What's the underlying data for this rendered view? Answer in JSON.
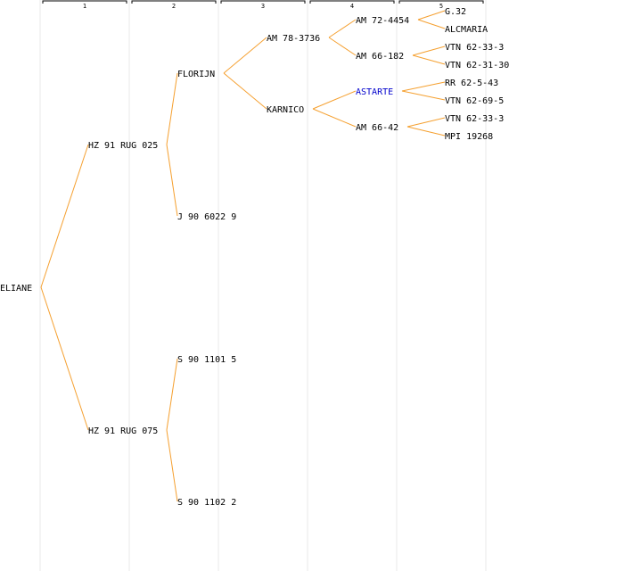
{
  "colors": {
    "edge": "#f5a030",
    "text": "#000000",
    "highlight": "#0000cc",
    "column_line": "#e8e8e8",
    "bracket": "#000000"
  },
  "generations": [
    "1",
    "2",
    "3",
    "4",
    "5"
  ],
  "nodes": [
    {
      "id": "n0",
      "gen": 0,
      "row": 15,
      "label": "ELIANE"
    },
    {
      "id": "n1",
      "gen": 1,
      "row": 7,
      "label": "HZ 91 RUG 025",
      "parent": "n0"
    },
    {
      "id": "n2",
      "gen": 1,
      "row": 23,
      "label": "HZ 91 RUG 075",
      "parent": "n0"
    },
    {
      "id": "n3",
      "gen": 2,
      "row": 3,
      "label": "FLORIJN",
      "parent": "n1"
    },
    {
      "id": "n4",
      "gen": 2,
      "row": 11,
      "label": "J 90 6022 9",
      "parent": "n1"
    },
    {
      "id": "n5",
      "gen": 2,
      "row": 19,
      "label": "S 90 1101 5",
      "parent": "n2"
    },
    {
      "id": "n6",
      "gen": 2,
      "row": 27,
      "label": "S 90 1102 2",
      "parent": "n2"
    },
    {
      "id": "n7",
      "gen": 3,
      "row": 1,
      "label": "AM 78-3736",
      "parent": "n3"
    },
    {
      "id": "n8",
      "gen": 3,
      "row": 5,
      "label": "KARNICO",
      "parent": "n3"
    },
    {
      "id": "n9",
      "gen": 4,
      "row": 0,
      "label": "AM 72-4454",
      "parent": "n7"
    },
    {
      "id": "n10",
      "gen": 4,
      "row": 2,
      "label": "AM 66-182",
      "parent": "n7"
    },
    {
      "id": "n11",
      "gen": 4,
      "row": 4,
      "label": "ASTARTE",
      "parent": "n8",
      "highlight": true
    },
    {
      "id": "n12",
      "gen": 4,
      "row": 6,
      "label": "AM 66-42",
      "parent": "n8"
    },
    {
      "id": "n13",
      "gen": 5,
      "row": -0.5,
      "label": "G.32",
      "parent": "n9"
    },
    {
      "id": "n14",
      "gen": 5,
      "row": 0.5,
      "label": "ALCMARIA",
      "parent": "n9"
    },
    {
      "id": "n15",
      "gen": 5,
      "row": 1.5,
      "label": "VTN 62-33-3",
      "parent": "n10"
    },
    {
      "id": "n16",
      "gen": 5,
      "row": 2.5,
      "label": "VTN 62-31-30",
      "parent": "n10"
    },
    {
      "id": "n17",
      "gen": 5,
      "row": 3.5,
      "label": "RR 62-5-43",
      "parent": "n11"
    },
    {
      "id": "n18",
      "gen": 5,
      "row": 4.5,
      "label": "VTN 62-69-5",
      "parent": "n11"
    },
    {
      "id": "n19",
      "gen": 5,
      "row": 5.5,
      "label": "VTN 62-33-3",
      "parent": "n12"
    },
    {
      "id": "n20",
      "gen": 5,
      "row": 6.5,
      "label": "MPI 19268",
      "parent": "n12"
    }
  ]
}
